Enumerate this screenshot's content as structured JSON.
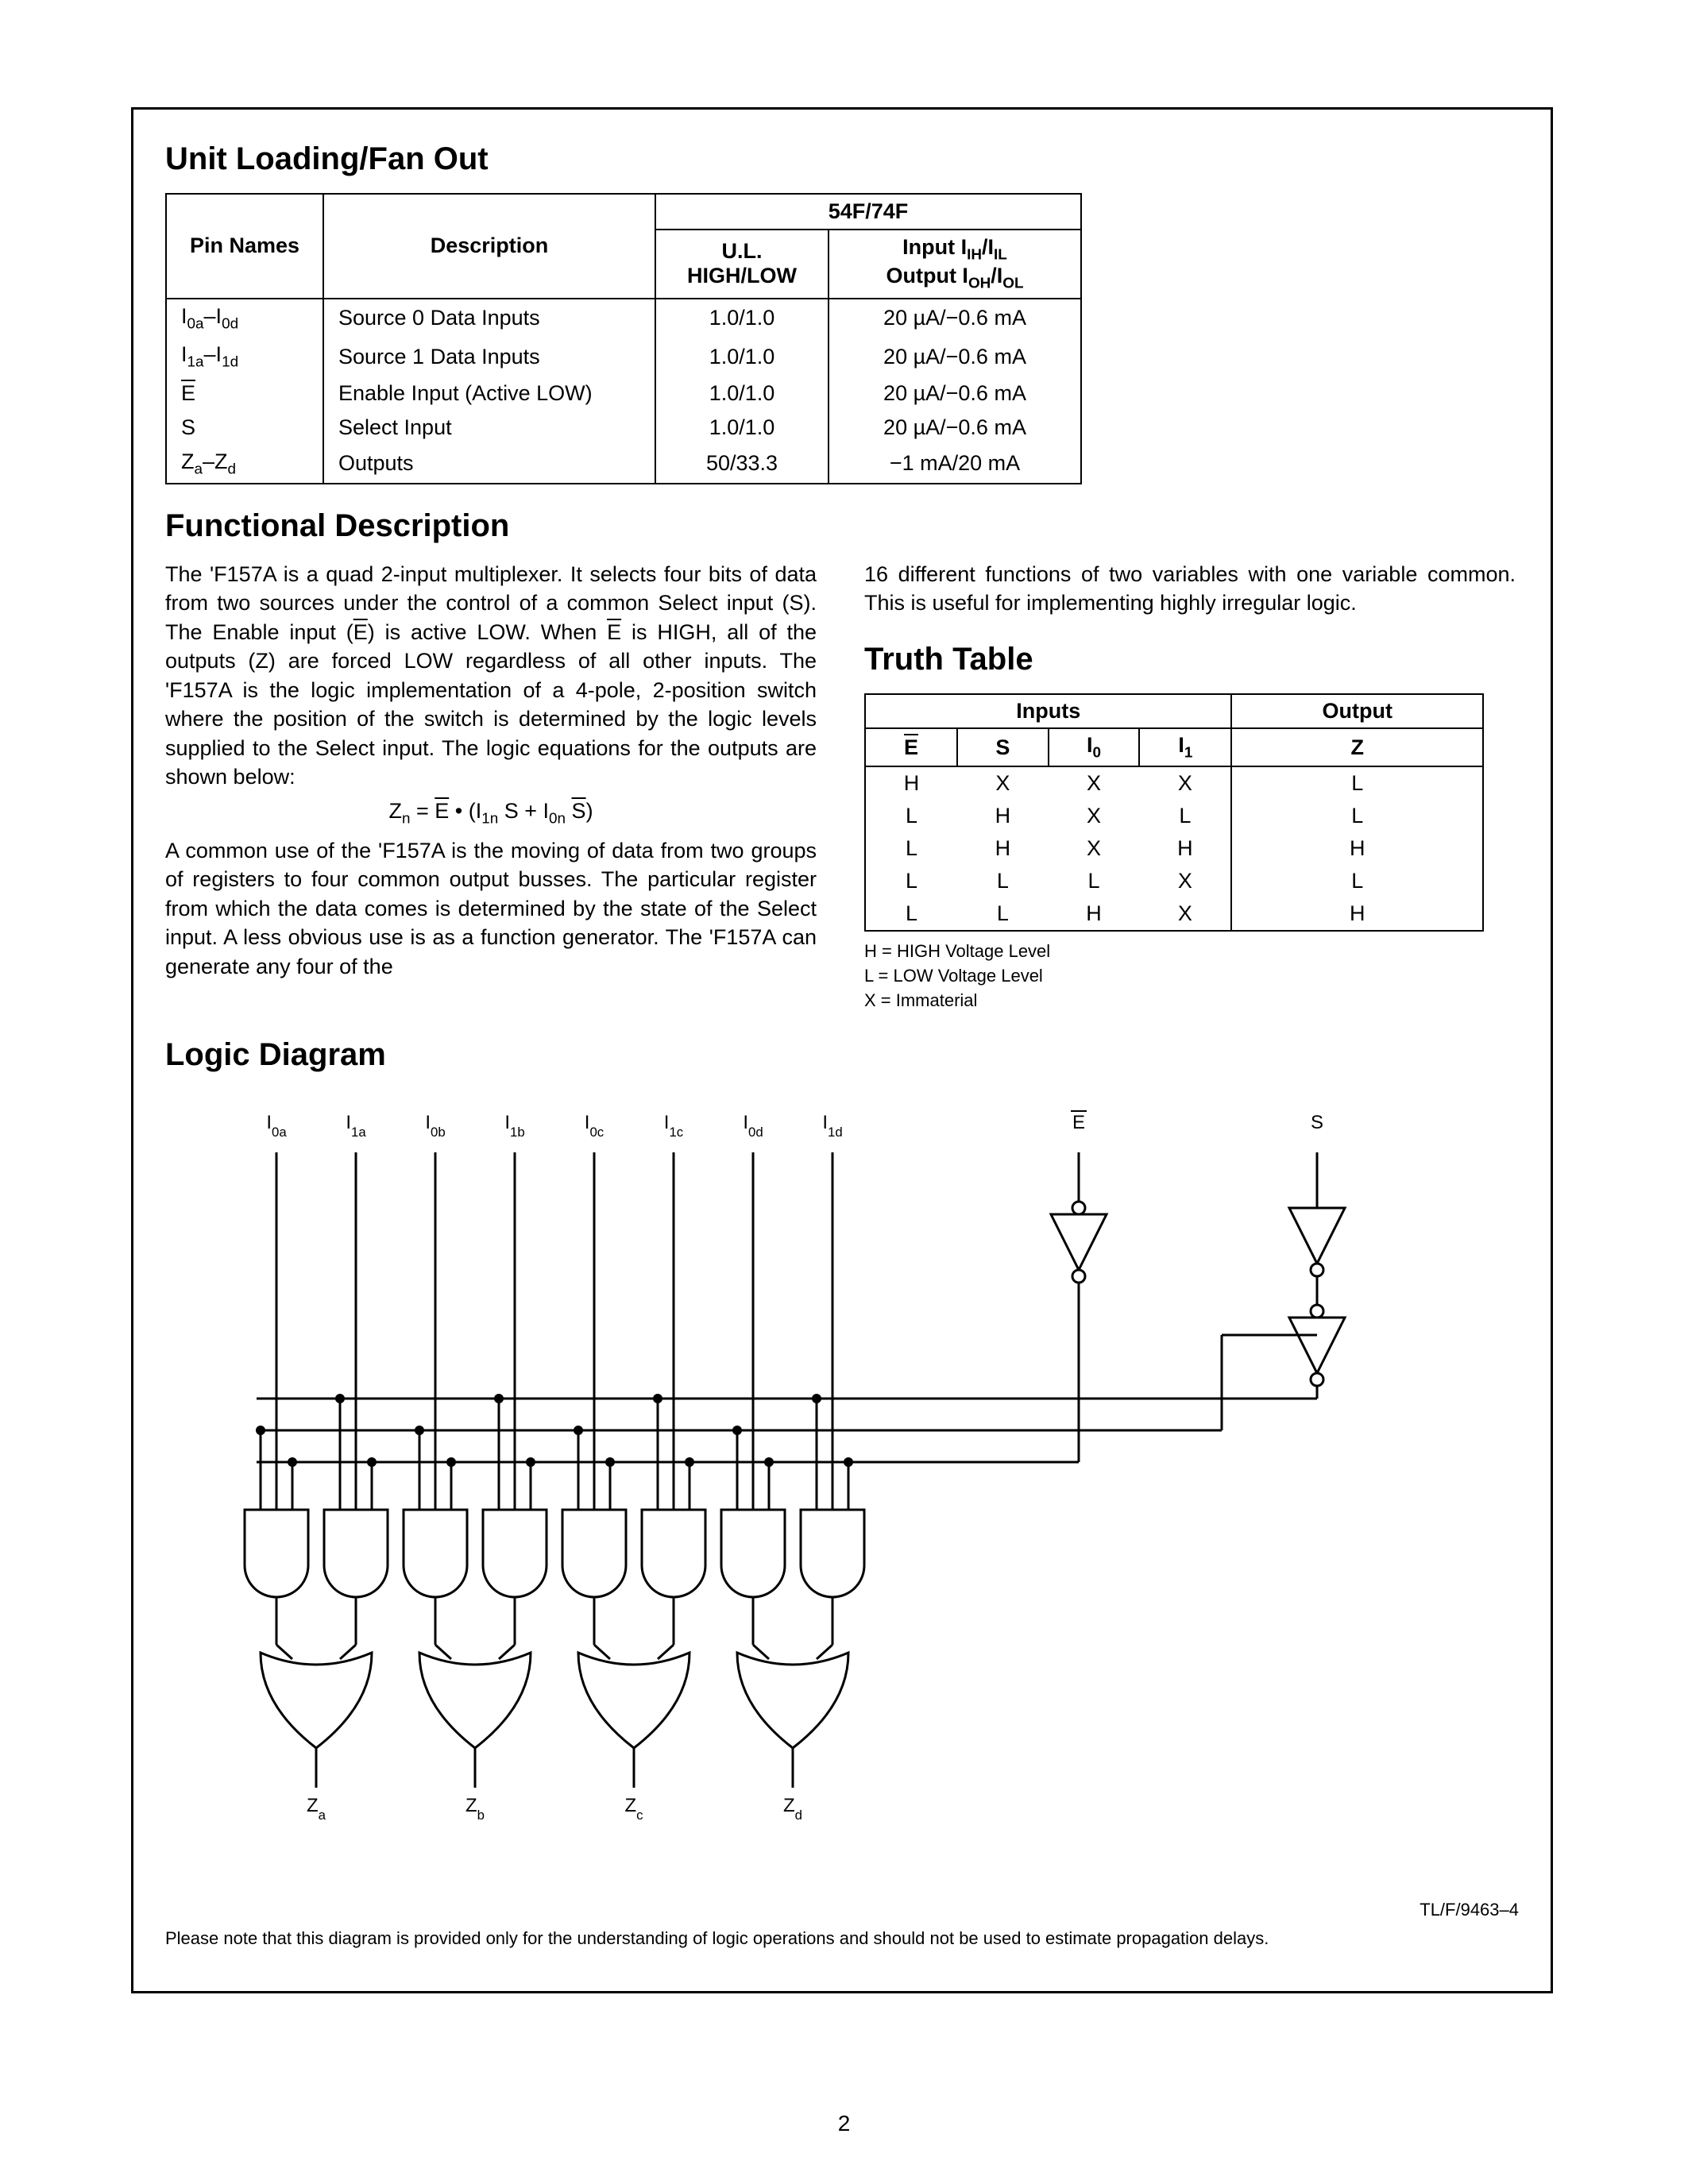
{
  "page_number": "2",
  "sections": {
    "unit_loading_title": "Unit Loading/Fan Out",
    "functional_title": "Functional Description",
    "truth_table_title": "Truth Table",
    "logic_diagram_title": "Logic Diagram"
  },
  "unit_loading": {
    "header_family": "54F/74F",
    "col_pin": "Pin Names",
    "col_desc": "Description",
    "col_ul_line1": "U.L.",
    "col_ul_line2": "HIGH/LOW",
    "col_io_line1": "Input I",
    "col_io_line1_sub1": "IH",
    "col_io_line1_mid": "/I",
    "col_io_line1_sub2": "IL",
    "col_io_line2": "Output I",
    "col_io_line2_sub1": "OH",
    "col_io_line2_mid": "/I",
    "col_io_line2_sub2": "OL",
    "rows": [
      {
        "pin_pre": "I",
        "pin_sub1": "0a",
        "pin_mid": "–I",
        "pin_sub2": "0d",
        "desc": "Source 0 Data Inputs",
        "ul": "1.0/1.0",
        "io": "20 µA/−0.6 mA"
      },
      {
        "pin_pre": "I",
        "pin_sub1": "1a",
        "pin_mid": "–I",
        "pin_sub2": "1d",
        "desc": "Source 1 Data Inputs",
        "ul": "1.0/1.0",
        "io": "20 µA/−0.6 mA"
      },
      {
        "pin_plain_over": "E",
        "desc": "Enable Input (Active LOW)",
        "ul": "1.0/1.0",
        "io": "20 µA/−0.6 mA"
      },
      {
        "pin_plain": "S",
        "desc": "Select Input",
        "ul": "1.0/1.0",
        "io": "20 µA/−0.6 mA"
      },
      {
        "pin_pre": "Z",
        "pin_sub1": "a",
        "pin_mid": "–Z",
        "pin_sub2": "d",
        "desc": "Outputs",
        "ul": "50/33.3",
        "io": "−1 mA/20 mA"
      }
    ]
  },
  "functional_desc": {
    "p1a": "The 'F157A is a quad 2-input multiplexer. It selects four bits of data from two sources under the control of a common Select input (S). The Enable input (",
    "p1b": ") is active LOW. When ",
    "p1c": " is HIGH, all of the outputs (Z) are forced LOW regardless of all other inputs. The 'F157A is the logic implementation of a 4-pole, 2-position switch where the position of the switch is determined by the logic levels supplied to the Select input. The logic equations for the outputs are shown below:",
    "eqn_pre": "Z",
    "eqn_sub": "n",
    "eqn_mid": " = ",
    "eqn_e": "E",
    "eqn_dot": " • (I",
    "eqn_s1": "1n",
    "eqn_s": " S + I",
    "eqn_s0": "0n",
    "eqn_sbar": " S",
    "eqn_end": ")",
    "p2": "A common use of the 'F157A is the moving of data from two groups of registers to four common output busses. The particular register from which the data comes is determined by the state of the Select input. A less obvious use is as a function generator. The 'F157A can generate any four of the",
    "p3": "16 different functions of two variables with one variable common. This is useful for implementing highly irregular logic."
  },
  "truth_table": {
    "hdr_inputs": "Inputs",
    "hdr_output": "Output",
    "cols": {
      "c1": "E",
      "c2": "S",
      "c3_pre": "I",
      "c3_sub": "0",
      "c4_pre": "I",
      "c4_sub": "1",
      "c5": "Z"
    },
    "rows": [
      [
        "H",
        "X",
        "X",
        "X",
        "L"
      ],
      [
        "L",
        "H",
        "X",
        "L",
        "L"
      ],
      [
        "L",
        "H",
        "X",
        "H",
        "H"
      ],
      [
        "L",
        "L",
        "L",
        "X",
        "L"
      ],
      [
        "L",
        "L",
        "H",
        "X",
        "H"
      ]
    ],
    "legend1": "H = HIGH Voltage Level",
    "legend2": "L = LOW Voltage Level",
    "legend3": "X = Immaterial"
  },
  "logic_diagram": {
    "input_labels": [
      "I0a",
      "I1a",
      "I0b",
      "I1b",
      "I0c",
      "I1c",
      "I0d",
      "I1d"
    ],
    "e_label": "E",
    "s_label": "S",
    "output_labels": [
      "Za",
      "Zb",
      "Zc",
      "Zd"
    ],
    "ref": "TL/F/9463–4",
    "note": "Please note that this diagram is provided only for the understanding of logic operations and should not be used to estimate propagation delays.",
    "stroke": "#000000",
    "text_size": 24,
    "gate_fill": "#ffffff"
  }
}
